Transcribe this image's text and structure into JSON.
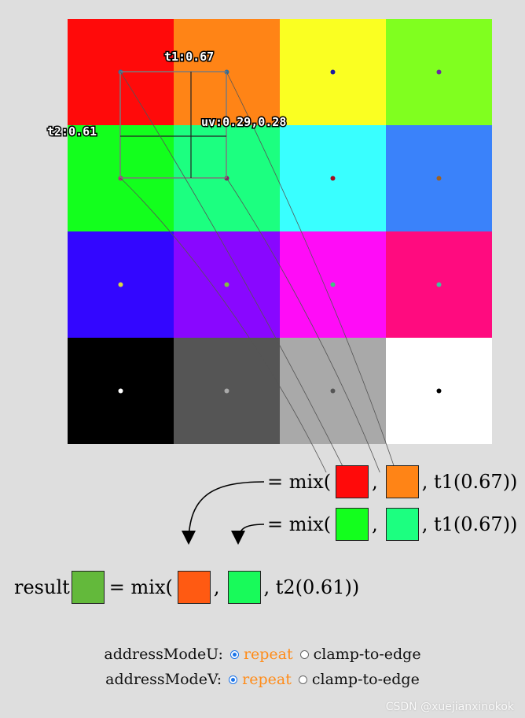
{
  "texture": {
    "cells": [
      [
        "#ff0a0a",
        "#ff8416",
        "#faff22",
        "#80ff1f"
      ],
      [
        "#13ff1d",
        "#1cff80",
        "#39ffff",
        "#3a82fa"
      ],
      [
        "#3306ff",
        "#8907ff",
        "#ff0cf7",
        "#ff0b7f"
      ],
      [
        "#000000",
        "#555555",
        "#a9a9a9",
        "#ffffff"
      ]
    ],
    "dot_colors": [
      [
        "#2a6fa3",
        "#2a6fa3",
        "#1a1aa0",
        "#6a2aa0"
      ],
      [
        "#c0208a",
        "#8a206a",
        "#a01020",
        "#a06020"
      ],
      [
        "#d9d940",
        "#80c040",
        "#40c080",
        "#40c0a0"
      ],
      [
        "#ffffff",
        "#aaaaaa",
        "#555555",
        "#000000"
      ]
    ]
  },
  "labels": {
    "t1": "t1:0.67",
    "t2": "t2:0.61",
    "uv": "uv:0.29,0.28"
  },
  "mix_rows": [
    {
      "prefix": "= mix(",
      "sep": ",",
      "suffix": ", t1(0.67))",
      "colors": [
        "#ff0a0a",
        "#ff8416"
      ]
    },
    {
      "prefix": "= mix(",
      "sep": ",",
      "suffix": ", t1(0.67))",
      "colors": [
        "#13ff1d",
        "#1cff80"
      ]
    }
  ],
  "result": {
    "label": "result",
    "prefix": "= mix(",
    "sep": ",",
    "suffix": ", t2(0.61))",
    "result_color": "#63b93b",
    "colors": [
      "#ff5a12",
      "#18fa5a"
    ]
  },
  "controls": {
    "u_label": "addressModeU:",
    "v_label": "addressModeV:",
    "opt_repeat": "repeat",
    "opt_clamp": "clamp-to-edge",
    "selected_color": "#ff8c1a"
  },
  "watermark": "CSDN @xuejianxinokok"
}
